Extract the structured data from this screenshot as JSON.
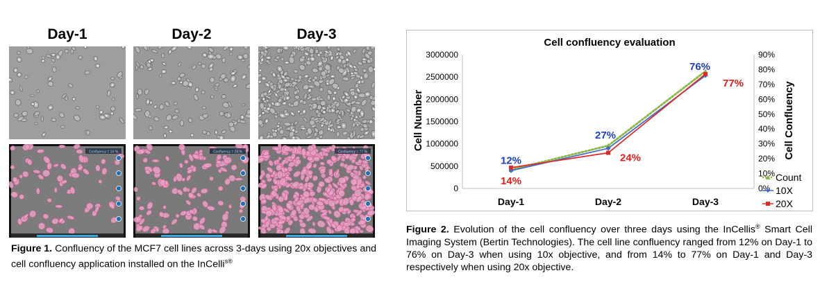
{
  "figure1": {
    "day_labels": [
      "Day-1",
      "Day-2",
      "Day-3"
    ],
    "overlay_labels": [
      "Confluency = 14 %",
      "Confluency = 24 %",
      "Confluency = 77 %"
    ],
    "caption_label": "Figure 1.",
    "caption_text": " Confluency of the MCF7 cell lines across 3-days using 20x objectives and cell confluency application installed on the InCelli",
    "caption_sup": "s®"
  },
  "figure2": {
    "caption_label": "Figure 2.",
    "caption_text_1": " Evolution of the cell confluency over three days using the InCellis",
    "caption_sup": "®",
    "caption_text_2": " Smart Cell Imaging System (Bertin Technologies). The cell line confluency ranged from 12% on Day-1 to 76% on Day-3 when using 10x objective, and from 14% to 77% on Day-1 and Day-3 respectively when using 20x objective."
  },
  "chart_data": {
    "type": "line",
    "title": "Cell confluency evaluation",
    "categories": [
      "Day-1",
      "Day-2",
      "Day-3"
    ],
    "ylabel": "Cell Number",
    "y2label": "Cell Confluency",
    "ylim": [
      0,
      3000000
    ],
    "y2lim": [
      0,
      90
    ],
    "y_ticks": [
      "0",
      "500000",
      "1000000",
      "1500000",
      "2000000",
      "2500000",
      "3000000"
    ],
    "y2_ticks": [
      "0%",
      "10%",
      "20%",
      "30%",
      "40%",
      "50%",
      "60%",
      "70%",
      "80%",
      "90%"
    ],
    "grid": false,
    "legend_position": "right",
    "series": [
      {
        "name": "Count",
        "axis": "left",
        "values": [
          420000,
          960000,
          2630000
        ],
        "color": "#8cb84a",
        "style": "dotted"
      },
      {
        "name": "10X",
        "axis": "right",
        "values": [
          12,
          27,
          76
        ],
        "color": "#3f6cc6",
        "style": "solid"
      },
      {
        "name": "20X",
        "axis": "right",
        "values": [
          14,
          24,
          77
        ],
        "color": "#e22a2a",
        "style": "solid"
      }
    ],
    "annotations_10x": [
      "12%",
      "27%",
      "76%"
    ],
    "annotations_20x": [
      "14%",
      "24%",
      "77%"
    ],
    "colors": {
      "annotation_10x": "#1f3fbf",
      "annotation_20x": "#e21d1d"
    }
  }
}
